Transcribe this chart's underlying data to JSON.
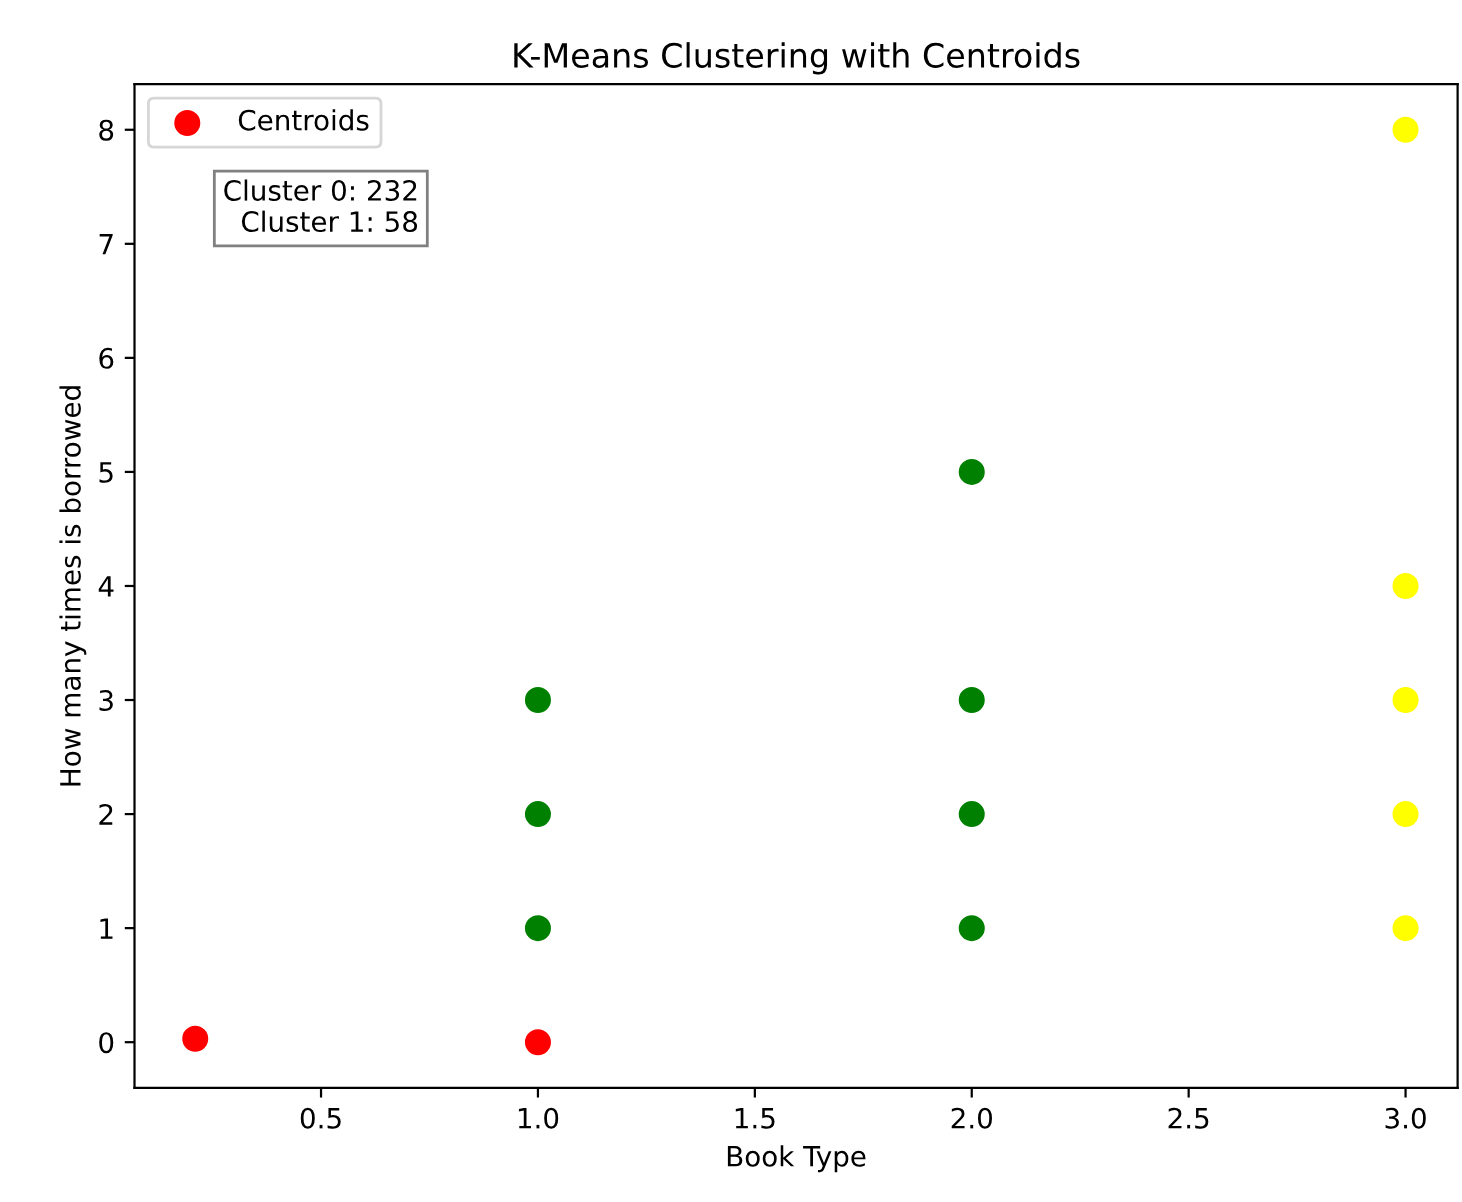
{
  "chart_data": {
    "type": "scatter",
    "title": "K-Means Clustering with Centroids",
    "xlabel": "Book Type",
    "ylabel": "How many times is borrowed",
    "series": [
      {
        "color": "#008000",
        "x": [
          1,
          1,
          1,
          2,
          2,
          2,
          2
        ],
        "values": [
          1,
          2,
          3,
          1,
          2,
          3,
          5
        ]
      },
      {
        "color": "#ffff00",
        "x": [
          3,
          3,
          3,
          3,
          3
        ],
        "values": [
          1,
          2,
          3,
          4,
          8
        ]
      },
      {
        "name": "Centroids",
        "color": "#ff0000",
        "x": [
          0.21,
          1.0
        ],
        "values": [
          0.03,
          0.0
        ]
      }
    ],
    "xlim": [
      0.07,
      3.12
    ],
    "ylim": [
      -0.4,
      8.4
    ],
    "xticks": [
      {
        "value": 0.5,
        "label": "0.5"
      },
      {
        "value": 1.0,
        "label": "1.0"
      },
      {
        "value": 1.5,
        "label": "1.5"
      },
      {
        "value": 2.0,
        "label": "2.0"
      },
      {
        "value": 2.5,
        "label": "2.5"
      },
      {
        "value": 3.0,
        "label": "3.0"
      }
    ],
    "yticks": [
      0,
      1,
      2,
      3,
      4,
      5,
      6,
      7,
      8
    ],
    "annotations": [
      "Cluster 0: 232\nCluster 1: 58"
    ],
    "legend": "top left",
    "marker": "circle",
    "grid": false
  }
}
